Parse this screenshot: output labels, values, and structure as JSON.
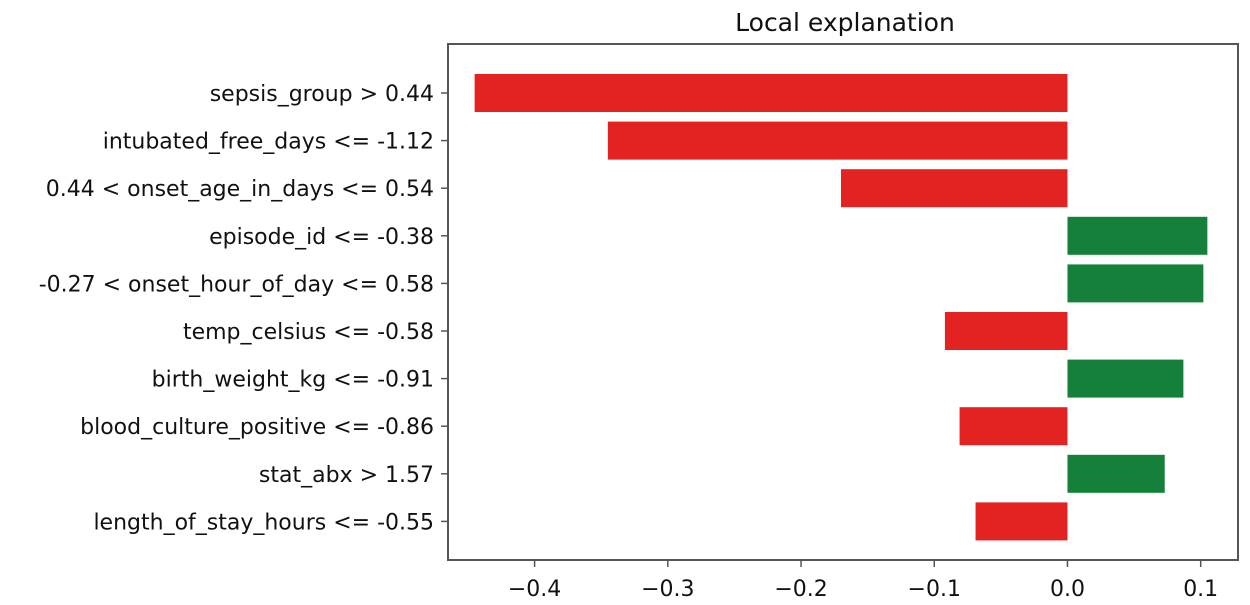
{
  "chart_data": {
    "type": "bar",
    "orientation": "horizontal",
    "title": "Local explanation",
    "xlabel": "",
    "ylabel": "",
    "xlim": [
      -0.465,
      0.128
    ],
    "xticks": [
      -0.4,
      -0.3,
      -0.2,
      -0.1,
      0.0,
      0.1
    ],
    "xtick_labels": [
      "−0.4",
      "−0.3",
      "−0.2",
      "−0.1",
      "0.0",
      "0.1"
    ],
    "grid": false,
    "legend": "none",
    "colors": {
      "negative": "#e32222",
      "positive": "#148039",
      "axis": "#555555"
    },
    "categories": [
      "sepsis_group > 0.44",
      "intubated_free_days <= -1.12",
      "0.44 < onset_age_in_days <= 0.54",
      "episode_id <= -0.38",
      "-0.27 < onset_hour_of_day <= 0.58",
      "temp_celsius <= -0.58",
      "birth_weight_kg <= -0.91",
      "blood_culture_positive <= -0.86",
      "stat_abx > 1.57",
      "length_of_stay_hours <= -0.55"
    ],
    "values": [
      -0.445,
      -0.345,
      -0.17,
      0.105,
      0.102,
      -0.092,
      0.087,
      -0.081,
      0.073,
      -0.069
    ]
  }
}
